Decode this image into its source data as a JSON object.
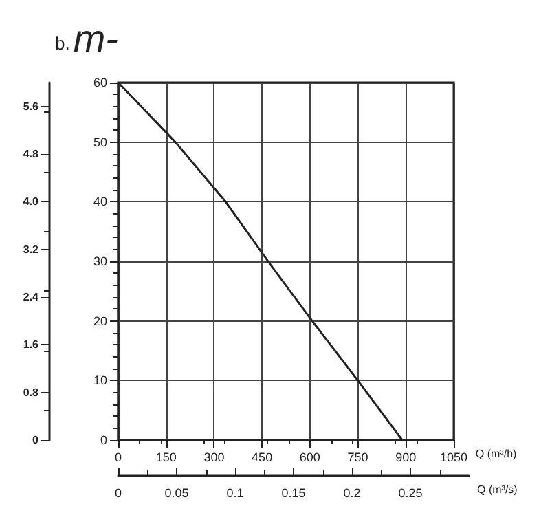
{
  "chart_data": {
    "type": "line",
    "ylabel": "m-",
    "y2label": "b.",
    "xlabel": "Q (m³/h)",
    "x2label": "Q (m³/s)",
    "series": [
      {
        "color": "#222222",
        "x": [
          0,
          179,
          336,
          469,
          607,
          750,
          889
        ],
        "values": [
          60,
          50,
          40,
          30,
          20,
          10,
          0
        ]
      }
    ],
    "xlim": [
      0,
      1050
    ],
    "xticks": [
      0,
      150,
      300,
      450,
      600,
      750,
      900,
      1050
    ],
    "x2lim": [
      0,
      0.3
    ],
    "x2ticks": [
      0,
      0.05,
      0.1,
      0.15,
      0.2,
      0.25
    ],
    "ylim": [
      0,
      60
    ],
    "yticks": [
      0,
      10,
      20,
      30,
      40,
      50,
      60
    ],
    "y2lim": [
      0,
      6
    ],
    "y2ticks": [
      {
        "value": 0,
        "label": "0"
      },
      0.8,
      1.6,
      2.4,
      3.2,
      {
        "value": 4,
        "label": "4.0"
      },
      4.8,
      5.6
    ],
    "grid": true,
    "marker": "none",
    "line_style": "solid"
  }
}
